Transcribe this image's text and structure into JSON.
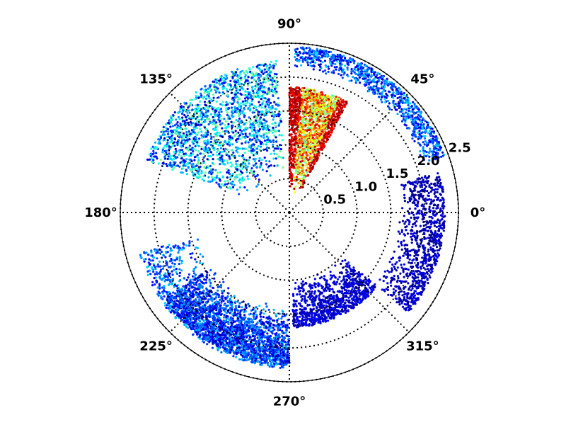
{
  "chart_data": {
    "type": "scatter",
    "projection": "polar",
    "title": "",
    "angle_ticks": [
      "0°",
      "45°",
      "90°",
      "135°",
      "180°",
      "225°",
      "270°",
      "315°"
    ],
    "angle_tick_values_deg": [
      0,
      45,
      90,
      135,
      180,
      225,
      270,
      315
    ],
    "radial_ticks": [
      "0.5",
      "1.0",
      "1.5",
      "2.0",
      "2.5"
    ],
    "radial_tick_values": [
      0.5,
      1.0,
      1.5,
      2.0,
      2.5
    ],
    "rlim": [
      0,
      2.5
    ],
    "grid": true,
    "grid_style": "dotted",
    "colormap": "jet",
    "colormap_colors": [
      "#00007f",
      "#0000ff",
      "#007fff",
      "#00ffff",
      "#7fff7f",
      "#ffff00",
      "#ff7f00",
      "#ff0000",
      "#7f0000"
    ],
    "regions": [
      {
        "name_hint": "upper-left dense cloud",
        "theta_deg": [
          95,
          160
        ],
        "r": [
          0.6,
          2.25
        ],
        "intensity": [
          0.05,
          0.5
        ],
        "density": "high"
      },
      {
        "name_hint": "upper-center hot block",
        "theta_deg": [
          62,
          90
        ],
        "r": [
          0.3,
          1.85
        ],
        "intensity": [
          0.45,
          0.95
        ],
        "density": "very-high"
      },
      {
        "name_hint": "outer arc upper-right",
        "theta_deg": [
          20,
          88
        ],
        "r": [
          2.1,
          2.45
        ],
        "intensity": [
          0.05,
          0.35
        ],
        "density": "medium"
      },
      {
        "name_hint": "right outer band",
        "theta_deg": [
          -40,
          15
        ],
        "r": [
          1.6,
          2.3
        ],
        "intensity": [
          0.0,
          0.12
        ],
        "density": "medium"
      },
      {
        "name_hint": "lower-right band",
        "theta_deg": [
          -88,
          -40
        ],
        "r": [
          1.0,
          1.7
        ],
        "intensity": [
          0.02,
          0.15
        ],
        "density": "medium"
      },
      {
        "name_hint": "left thin arc",
        "theta_deg": [
          195,
          268
        ],
        "r": [
          1.35,
          2.3
        ],
        "intensity": [
          0.1,
          0.35
        ],
        "density": "medium"
      },
      {
        "name_hint": "lower-left dense band",
        "theta_deg": [
          215,
          270
        ],
        "r": [
          1.45,
          2.25
        ],
        "intensity": [
          0.02,
          0.3
        ],
        "density": "high"
      }
    ]
  }
}
